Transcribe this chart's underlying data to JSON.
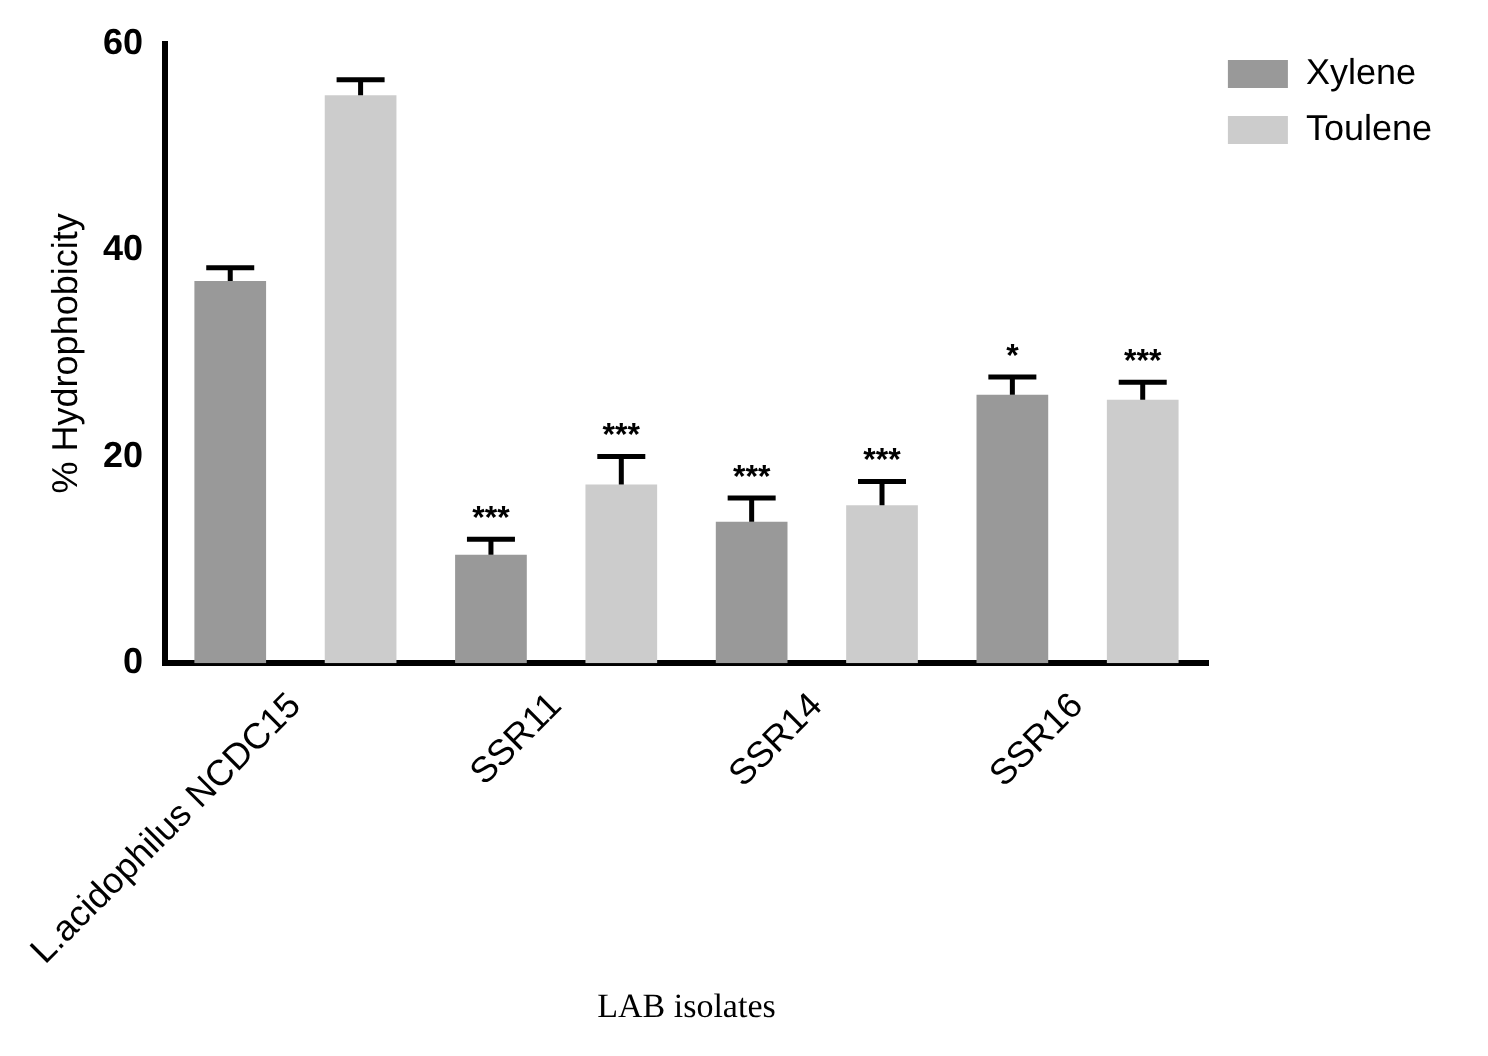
{
  "chart_data": {
    "type": "bar",
    "xlabel": "LAB isolates",
    "ylabel": "% Hydrophobicity",
    "categories": [
      "L.acidophilus NCDC15",
      "SSR11",
      "SSR14",
      "SSR16"
    ],
    "series": [
      {
        "name": "Xylene",
        "color": "#999999",
        "values": [
          37,
          10.5,
          13.7,
          26
        ],
        "errors": [
          [
            37,
            38.3
          ],
          [
            10.5,
            12
          ],
          [
            13.7,
            16
          ],
          [
            26,
            27.7
          ]
        ],
        "value_labels": [
          null,
          "***",
          "***",
          "*"
        ]
      },
      {
        "name": "Toulene",
        "color": "#cccccc",
        "values": [
          55,
          17.3,
          15.3,
          25.5
        ],
        "errors": [
          [
            55,
            56.5
          ],
          [
            17.3,
            20
          ],
          [
            15.3,
            17.6
          ],
          [
            25.5,
            27.2
          ]
        ],
        "value_labels": [
          null,
          "***",
          "***",
          "***"
        ]
      }
    ],
    "ylim": [
      0,
      60
    ],
    "yticks": [
      0,
      20,
      40,
      60
    ],
    "grid": false,
    "legend": "top right"
  }
}
